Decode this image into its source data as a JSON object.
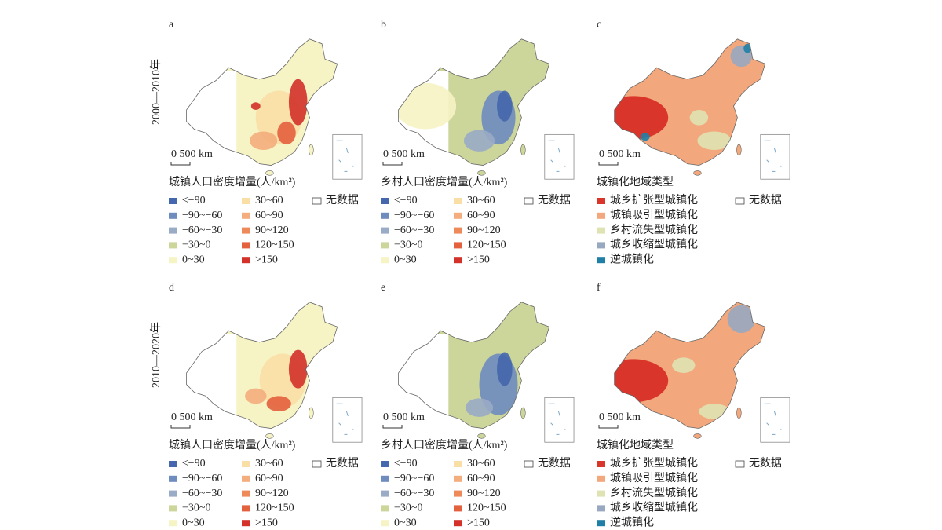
{
  "row_labels": [
    "2000—2010年",
    "2010—2020年"
  ],
  "panels": [
    {
      "label": "a",
      "scale": "0 500 km",
      "legend": {
        "title": "城镇人口密度增量(人/km²)",
        "no_data": "无数据",
        "items": [
          {
            "label": "≤−90",
            "color": "#4467ad"
          },
          {
            "label": "−90~−60",
            "color": "#6f8cbf"
          },
          {
            "label": "−60~−30",
            "color": "#9aabc6"
          },
          {
            "label": "−30~0",
            "color": "#cdd69a"
          },
          {
            "label": "0~30",
            "color": "#f6f3c4"
          },
          {
            "label": "30~60",
            "color": "#f9dfa6"
          },
          {
            "label": "60~90",
            "color": "#f4ad7c"
          },
          {
            "label": "90~120",
            "color": "#ee8a5a"
          },
          {
            "label": "120~150",
            "color": "#e4613e"
          },
          {
            "label": ">150",
            "color": "#d3312a"
          }
        ]
      }
    },
    {
      "label": "b",
      "scale": "0 500 km",
      "legend": {
        "title": "乡村人口密度增量(人/km²)",
        "no_data": "无数据",
        "items": [
          {
            "label": "≤−90",
            "color": "#4467ad"
          },
          {
            "label": "−90~−60",
            "color": "#6f8cbf"
          },
          {
            "label": "−60~−30",
            "color": "#9aabc6"
          },
          {
            "label": "−30~0",
            "color": "#cdd69a"
          },
          {
            "label": "0~30",
            "color": "#f6f3c4"
          },
          {
            "label": "30~60",
            "color": "#f9dfa6"
          },
          {
            "label": "60~90",
            "color": "#f4ad7c"
          },
          {
            "label": "90~120",
            "color": "#ee8a5a"
          },
          {
            "label": "120~150",
            "color": "#e4613e"
          },
          {
            "label": ">150",
            "color": "#d3312a"
          }
        ]
      }
    },
    {
      "label": "c",
      "scale": "0 500 km",
      "legend": {
        "title": "城镇化地域类型",
        "no_data": "无数据",
        "items": [
          {
            "label": "城乡扩张型城镇化",
            "color": "#d9352b"
          },
          {
            "label": "城镇吸引型城镇化",
            "color": "#f2a77c"
          },
          {
            "label": "乡村流失型城镇化",
            "color": "#dfe3b3"
          },
          {
            "label": "城乡收缩型城镇化",
            "color": "#97a8c0"
          },
          {
            "label": "逆城镇化",
            "color": "#1f7fa6"
          }
        ]
      }
    },
    {
      "label": "d",
      "scale": "0 500 km",
      "legend": {
        "title": "城镇人口密度增量(人/km²)",
        "no_data": "无数据",
        "items": [
          {
            "label": "≤−90",
            "color": "#4467ad"
          },
          {
            "label": "−90~−60",
            "color": "#6f8cbf"
          },
          {
            "label": "−60~−30",
            "color": "#9aabc6"
          },
          {
            "label": "−30~0",
            "color": "#cdd69a"
          },
          {
            "label": "0~30",
            "color": "#f6f3c4"
          },
          {
            "label": "30~60",
            "color": "#f9dfa6"
          },
          {
            "label": "60~90",
            "color": "#f4ad7c"
          },
          {
            "label": "90~120",
            "color": "#ee8a5a"
          },
          {
            "label": "120~150",
            "color": "#e4613e"
          },
          {
            "label": ">150",
            "color": "#d3312a"
          }
        ]
      }
    },
    {
      "label": "e",
      "scale": "0 500 km",
      "legend": {
        "title": "乡村人口密度增量(人/km²)",
        "no_data": "无数据",
        "items": [
          {
            "label": "≤−90",
            "color": "#4467ad"
          },
          {
            "label": "−90~−60",
            "color": "#6f8cbf"
          },
          {
            "label": "−60~−30",
            "color": "#9aabc6"
          },
          {
            "label": "−30~0",
            "color": "#cdd69a"
          },
          {
            "label": "0~30",
            "color": "#f6f3c4"
          },
          {
            "label": "30~60",
            "color": "#f9dfa6"
          },
          {
            "label": "60~90",
            "color": "#f4ad7c"
          },
          {
            "label": "90~120",
            "color": "#ee8a5a"
          },
          {
            "label": "120~150",
            "color": "#e4613e"
          },
          {
            "label": ">150",
            "color": "#d3312a"
          }
        ]
      }
    },
    {
      "label": "f",
      "scale": "0 500 km",
      "legend": {
        "title": "城镇化地域类型",
        "no_data": "无数据",
        "items": [
          {
            "label": "城乡扩张型城镇化",
            "color": "#d9352b"
          },
          {
            "label": "城镇吸引型城镇化",
            "color": "#f2a77c"
          },
          {
            "label": "乡村流失型城镇化",
            "color": "#dfe3b3"
          },
          {
            "label": "城乡收缩型城镇化",
            "color": "#97a8c0"
          },
          {
            "label": "逆城镇化",
            "color": "#1f7fa6"
          }
        ]
      }
    }
  ]
}
